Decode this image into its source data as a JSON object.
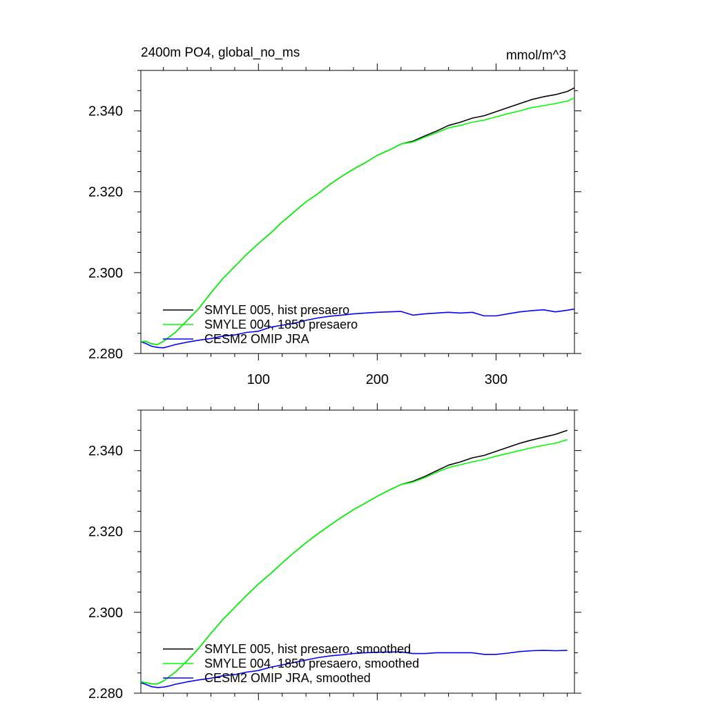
{
  "chart_data": [
    {
      "type": "line",
      "title": "2400m PO4, global_no_ms",
      "units": "mmol/m^3",
      "xlim": [
        1,
        366
      ],
      "ylim": [
        2.28,
        2.35
      ],
      "x_ticks": [
        100,
        200,
        300
      ],
      "x_tick_labels": [
        "100",
        "200",
        "300"
      ],
      "y_ticks": [
        2.28,
        2.3,
        2.32,
        2.34
      ],
      "y_tick_labels": [
        "2.280",
        "2.300",
        "2.320",
        "2.340"
      ],
      "grid": false,
      "legend_position": "bottom-left",
      "series": [
        {
          "name": "SMYLE 005, hist presaero",
          "color": "#000000",
          "x": [
            1,
            5,
            10,
            15,
            20,
            30,
            40,
            50,
            60,
            70,
            80,
            90,
            100,
            110,
            120,
            130,
            140,
            150,
            160,
            170,
            180,
            190,
            200,
            210,
            220,
            230,
            240,
            250,
            260,
            270,
            280,
            290,
            300,
            310,
            320,
            330,
            340,
            350,
            360,
            366
          ],
          "y": [
            2.2829,
            2.283,
            2.2824,
            2.2822,
            2.283,
            2.2852,
            2.2882,
            2.2912,
            2.295,
            2.2985,
            2.3015,
            2.3045,
            2.3072,
            2.3097,
            2.3125,
            2.315,
            2.3175,
            2.3195,
            2.3218,
            2.3238,
            2.3256,
            2.3272,
            2.329,
            2.3303,
            2.3318,
            2.3325,
            2.3338,
            2.335,
            2.3364,
            2.3372,
            2.3382,
            2.3388,
            2.3398,
            2.3408,
            2.3418,
            2.3428,
            2.3435,
            2.344,
            2.3448,
            2.3457
          ]
        },
        {
          "name": "SMYLE 004, 1850 presaero",
          "color": "#00ff00",
          "x": [
            1,
            5,
            10,
            15,
            20,
            30,
            40,
            50,
            60,
            70,
            80,
            90,
            100,
            110,
            120,
            130,
            140,
            150,
            160,
            170,
            180,
            190,
            200,
            210,
            220,
            230,
            240,
            250,
            260,
            270,
            280,
            290,
            300,
            310,
            320,
            330,
            340,
            350,
            360,
            366
          ],
          "y": [
            2.2829,
            2.283,
            2.2824,
            2.2822,
            2.283,
            2.2852,
            2.2882,
            2.2912,
            2.295,
            2.2985,
            2.3015,
            2.3045,
            2.3072,
            2.3097,
            2.3125,
            2.315,
            2.3175,
            2.3195,
            2.3218,
            2.3238,
            2.3256,
            2.3272,
            2.329,
            2.3303,
            2.3318,
            2.3323,
            2.3335,
            2.3346,
            2.3358,
            2.3364,
            2.3372,
            2.3377,
            2.3385,
            2.3393,
            2.34,
            2.3408,
            2.3413,
            2.3418,
            2.3424,
            2.3432
          ]
        },
        {
          "name": "CESM2 OMIP JRA",
          "color": "#0000ff",
          "x": [
            1,
            5,
            10,
            15,
            20,
            25,
            30,
            40,
            50,
            60,
            70,
            80,
            90,
            100,
            110,
            120,
            130,
            140,
            150,
            160,
            170,
            180,
            190,
            200,
            210,
            220,
            230,
            240,
            250,
            260,
            270,
            280,
            290,
            300,
            310,
            320,
            330,
            340,
            350,
            360,
            366
          ],
          "y": [
            2.2829,
            2.2825,
            2.2818,
            2.2815,
            2.2814,
            2.2818,
            2.2822,
            2.2828,
            2.2833,
            2.2837,
            2.2843,
            2.2846,
            2.2852,
            2.2855,
            2.2865,
            2.287,
            2.2875,
            2.2882,
            2.2888,
            2.2892,
            2.2895,
            2.2898,
            2.29,
            2.2902,
            2.2903,
            2.2904,
            2.2895,
            2.2898,
            2.29,
            2.2902,
            2.29,
            2.2902,
            2.2893,
            2.2893,
            2.2898,
            2.2903,
            2.2906,
            2.2908,
            2.2903,
            2.2907,
            2.291
          ]
        }
      ]
    },
    {
      "type": "line",
      "xlim": [
        1,
        366
      ],
      "ylim": [
        2.28,
        2.35
      ],
      "x_ticks": [
        100,
        200,
        300
      ],
      "y_ticks": [
        2.28,
        2.3,
        2.32,
        2.34
      ],
      "y_tick_labels": [
        "2.280",
        "2.300",
        "2.320",
        "2.340"
      ],
      "grid": false,
      "legend_position": "bottom-left",
      "series": [
        {
          "name": "SMYLE 005, hist presaero, smoothed",
          "color": "#000000",
          "x": [
            1,
            5,
            10,
            15,
            20,
            30,
            40,
            50,
            60,
            70,
            80,
            90,
            100,
            110,
            120,
            130,
            140,
            150,
            160,
            170,
            180,
            190,
            200,
            210,
            220,
            230,
            240,
            250,
            260,
            270,
            280,
            290,
            300,
            310,
            320,
            330,
            340,
            350,
            360
          ],
          "y": [
            2.2828,
            2.2826,
            2.2823,
            2.2823,
            2.283,
            2.2852,
            2.288,
            2.2912,
            2.2948,
            2.2982,
            2.3012,
            2.3042,
            2.307,
            2.3095,
            2.3122,
            2.3148,
            2.3172,
            2.3194,
            2.3215,
            2.3235,
            2.3254,
            2.327,
            2.3287,
            2.3302,
            2.3316,
            2.3324,
            2.3336,
            2.335,
            2.3364,
            2.3372,
            2.3382,
            2.3388,
            2.3398,
            2.3408,
            2.3418,
            2.3426,
            2.3433,
            2.344,
            2.345
          ]
        },
        {
          "name": "SMYLE 004, 1850 presaero, smoothed",
          "color": "#00ff00",
          "x": [
            1,
            5,
            10,
            15,
            20,
            30,
            40,
            50,
            60,
            70,
            80,
            90,
            100,
            110,
            120,
            130,
            140,
            150,
            160,
            170,
            180,
            190,
            200,
            210,
            220,
            230,
            240,
            250,
            260,
            270,
            280,
            290,
            300,
            310,
            320,
            330,
            340,
            350,
            360
          ],
          "y": [
            2.2828,
            2.2826,
            2.2823,
            2.2823,
            2.283,
            2.2852,
            2.288,
            2.2912,
            2.2948,
            2.2982,
            2.3012,
            2.3042,
            2.307,
            2.3095,
            2.3122,
            2.3148,
            2.3172,
            2.3194,
            2.3215,
            2.3235,
            2.3254,
            2.327,
            2.3287,
            2.3302,
            2.3316,
            2.3322,
            2.3333,
            2.3346,
            2.3358,
            2.3365,
            2.3372,
            2.3378,
            2.3386,
            2.3393,
            2.34,
            2.3407,
            2.3413,
            2.3418,
            2.3427
          ]
        },
        {
          "name": "CESM2 OMIP JRA, smoothed",
          "color": "#0000ff",
          "x": [
            1,
            5,
            10,
            15,
            20,
            25,
            30,
            40,
            50,
            60,
            70,
            80,
            90,
            100,
            110,
            120,
            130,
            140,
            150,
            160,
            170,
            180,
            190,
            200,
            210,
            220,
            230,
            240,
            250,
            260,
            270,
            280,
            290,
            300,
            310,
            320,
            330,
            340,
            350,
            360
          ],
          "y": [
            2.2826,
            2.2822,
            2.2816,
            2.2814,
            2.2815,
            2.2818,
            2.2822,
            2.2828,
            2.2833,
            2.2837,
            2.2843,
            2.2846,
            2.2852,
            2.2856,
            2.2864,
            2.287,
            2.2876,
            2.2882,
            2.2888,
            2.2892,
            2.2895,
            2.2898,
            2.29,
            2.2901,
            2.2902,
            2.2902,
            2.2898,
            2.2898,
            2.29,
            2.29,
            2.29,
            2.29,
            2.2896,
            2.2896,
            2.2899,
            2.2903,
            2.2905,
            2.2906,
            2.2905,
            2.2906
          ]
        }
      ]
    }
  ]
}
